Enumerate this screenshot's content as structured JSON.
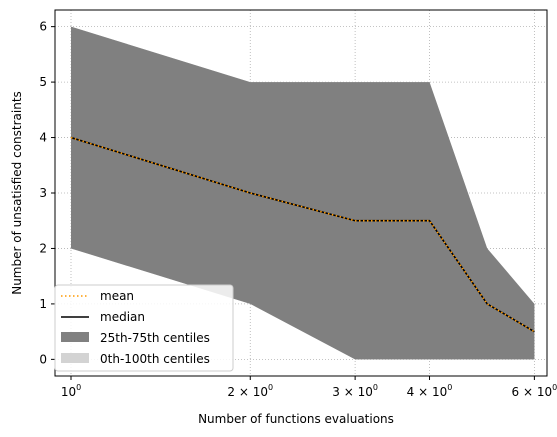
{
  "chart_data": {
    "type": "area",
    "xscale": "log",
    "xlabel": "Number of functions evaluations",
    "ylabel": "Number of unsatisfied constraints",
    "xlim": [
      0.94,
      6.3
    ],
    "ylim": [
      -0.3,
      6.3
    ],
    "grid": true,
    "legend_position": "lower-left",
    "x_ticks": [
      {
        "value": 1,
        "base": "10",
        "exp": "0",
        "coef": ""
      },
      {
        "value": 2,
        "base": "10",
        "exp": "0",
        "coef": "2 × "
      },
      {
        "value": 3,
        "base": "10",
        "exp": "0",
        "coef": "3 × "
      },
      {
        "value": 4,
        "base": "10",
        "exp": "0",
        "coef": "4 × "
      },
      {
        "value": 6,
        "base": "10",
        "exp": "0",
        "coef": "6 × "
      }
    ],
    "y_ticks": [
      "0",
      "1",
      "2",
      "3",
      "4",
      "5",
      "6"
    ],
    "x": [
      1,
      2,
      3,
      4,
      5,
      6
    ],
    "series": [
      {
        "name": "mean",
        "values": [
          4,
          3,
          2.5,
          2.5,
          1,
          0.5
        ],
        "color": "#ff9900",
        "style": "dotted"
      },
      {
        "name": "median",
        "values": [
          4,
          3,
          2.5,
          2.5,
          1,
          0.5
        ],
        "color": "#000000",
        "style": "solid"
      },
      {
        "name": "25th-75th centiles",
        "lower": [
          2,
          1,
          0,
          0,
          0,
          0
        ],
        "upper": [
          6,
          5,
          5,
          5,
          2,
          1
        ],
        "color": "#808080",
        "style": "band"
      },
      {
        "name": "0th-100th centiles",
        "lower": [
          2,
          1,
          0,
          0,
          0,
          0
        ],
        "upper": [
          6,
          5,
          5,
          5,
          2,
          1
        ],
        "color": "#d3d3d3",
        "style": "band"
      }
    ]
  }
}
